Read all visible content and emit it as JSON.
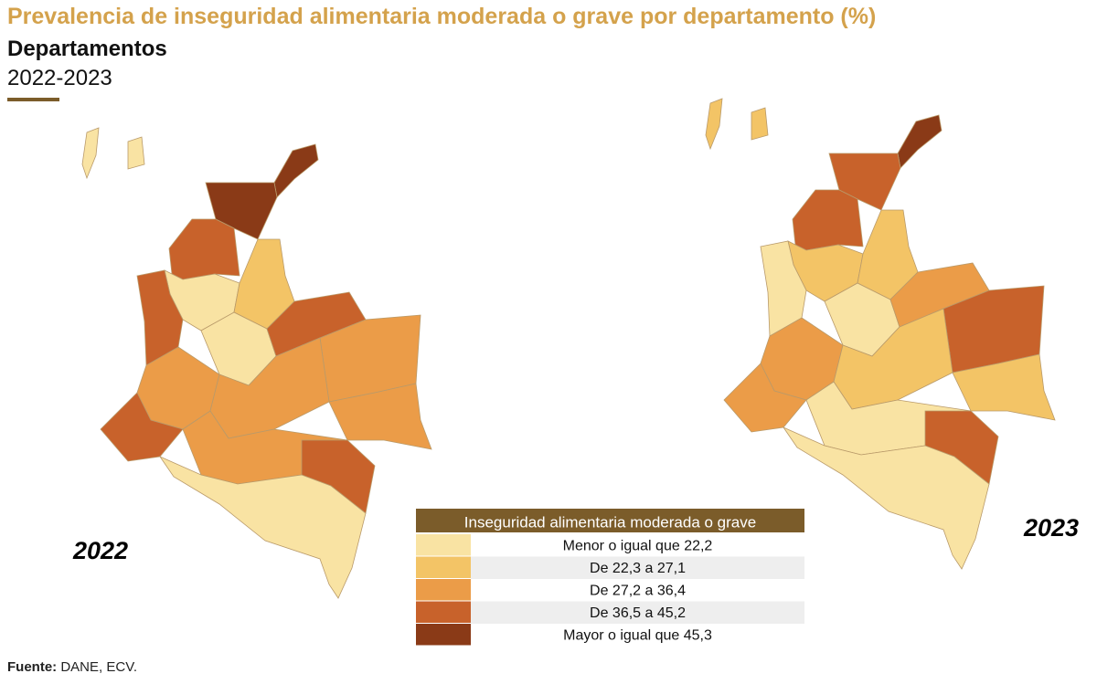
{
  "header": {
    "title": "Prevalencia de inseguridad alimentaria moderada o grave por departamento (%)",
    "subtitle": "Departamentos",
    "period": "2022-2023"
  },
  "maps": [
    {
      "label": "2022"
    },
    {
      "label": "2023"
    }
  ],
  "legend": {
    "title": "Inseguridad alimentaria moderada o grave",
    "header_color": "#7b5c2a",
    "classes": [
      {
        "label": "Menor o igual que 22,2",
        "color": "#f9e3a3"
      },
      {
        "label": "De 22,3 a 27,1",
        "color": "#f3c466"
      },
      {
        "label": "De 27,2 a 36,4",
        "color": "#eb9c48"
      },
      {
        "label": "De 36,5 a 45,2",
        "color": "#c8622b"
      },
      {
        "label": "Mayor o igual que 45,3",
        "color": "#8a3a17"
      }
    ]
  },
  "source": {
    "label": "Fuente:",
    "text": "DANE, ECV."
  }
}
